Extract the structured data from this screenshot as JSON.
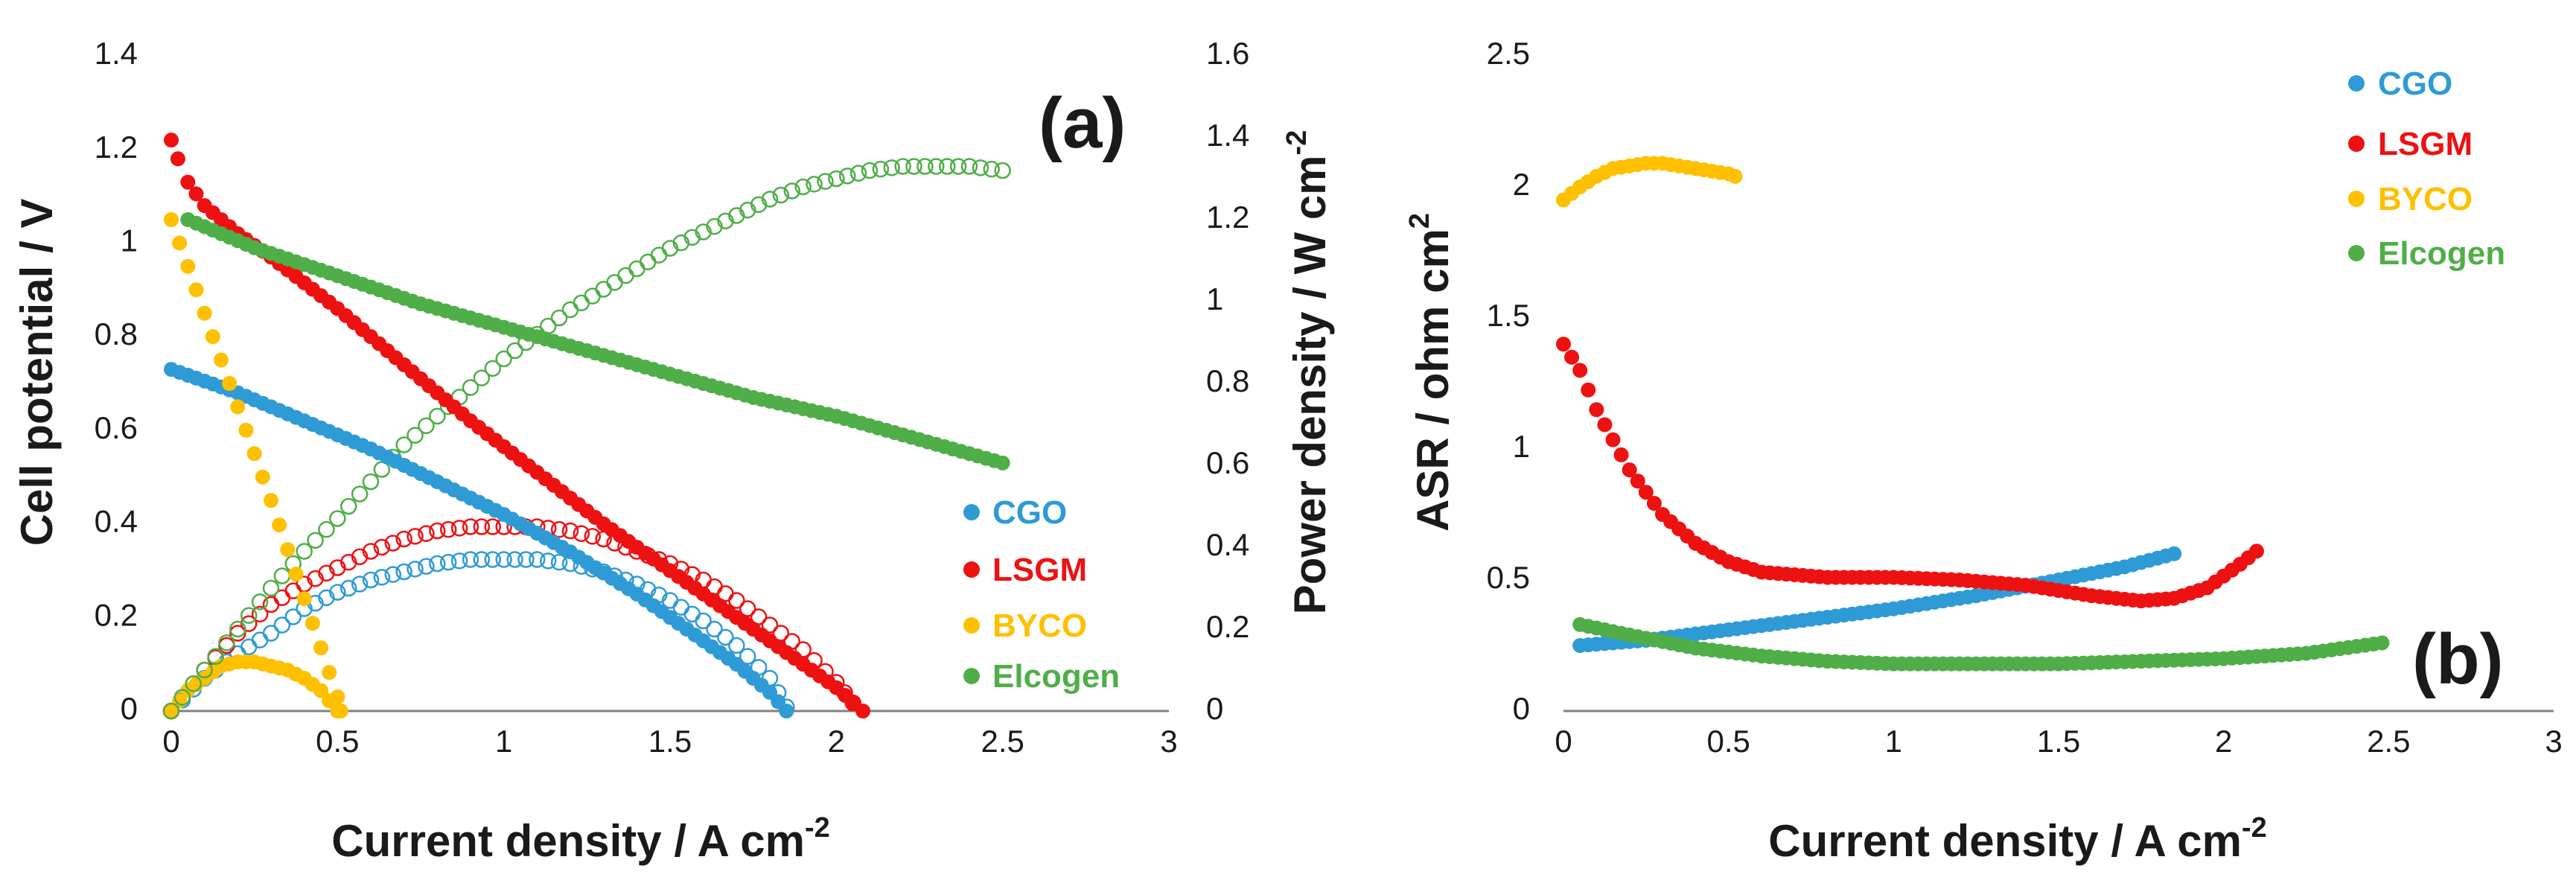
{
  "chart_data": [
    {
      "type": "scatter",
      "panel_label": "(a)",
      "xlabel": "Current density / A cm",
      "xlabel_sup": "-2",
      "ylabel": "Cell potential / V",
      "y2label": "Power density / W cm",
      "y2label_sup": "-2",
      "xlim": [
        0,
        3
      ],
      "ylim": [
        0,
        1.4
      ],
      "y2lim": [
        0,
        1.6
      ],
      "xticks": [
        "0",
        "0.5",
        "1",
        "1.5",
        "2",
        "2.5",
        "3"
      ],
      "yticks": [
        "0",
        "0.2",
        "0.4",
        "0.6",
        "0.8",
        "1",
        "1.2",
        "1.4"
      ],
      "y2ticks": [
        "0",
        "0.2",
        "0.4",
        "0.6",
        "0.8",
        "1",
        "1.2",
        "1.4",
        "1.6"
      ],
      "legend_position": "bottom-right",
      "legend": [
        {
          "name": "CGO",
          "color": "#2e9bd6"
        },
        {
          "name": "LSGM",
          "color": "#ee1111"
        },
        {
          "name": "BYCO",
          "color": "#ffc000"
        },
        {
          "name": "Elcogen",
          "color": "#4fae48"
        }
      ],
      "voltage_series": [
        {
          "name": "CGO",
          "color": "#2e9bd6",
          "style": "filled",
          "x": [
            0,
            0.2,
            0.4,
            0.6,
            0.8,
            1.0,
            1.2,
            1.4,
            1.6,
            1.7,
            1.8,
            1.85
          ],
          "y": [
            0.73,
            0.68,
            0.62,
            0.56,
            0.49,
            0.42,
            0.34,
            0.25,
            0.15,
            0.1,
            0.04,
            0.0
          ]
        },
        {
          "name": "LSGM",
          "color": "#ee1111",
          "style": "filled",
          "x": [
            0,
            0.02,
            0.05,
            0.1,
            0.2,
            0.3,
            0.5,
            0.7,
            0.9,
            1.1,
            1.3,
            1.5,
            1.7,
            1.9,
            2.0,
            2.08
          ],
          "y": [
            1.22,
            1.18,
            1.13,
            1.08,
            1.02,
            0.97,
            0.86,
            0.74,
            0.62,
            0.51,
            0.4,
            0.3,
            0.2,
            0.1,
            0.05,
            0.0
          ]
        },
        {
          "name": "BYCO",
          "color": "#ffc000",
          "style": "filled",
          "x": [
            0,
            0.05,
            0.1,
            0.2,
            0.3,
            0.4,
            0.5,
            0.51
          ],
          "y": [
            1.05,
            0.95,
            0.85,
            0.65,
            0.45,
            0.24,
            0.03,
            0.0
          ]
        },
        {
          "name": "Elcogen",
          "color": "#4fae48",
          "style": "filled",
          "x": [
            0.05,
            0.25,
            0.5,
            0.75,
            1.0,
            1.25,
            1.5,
            1.75,
            2.0,
            2.25,
            2.5
          ],
          "y": [
            1.05,
            0.99,
            0.93,
            0.87,
            0.82,
            0.77,
            0.72,
            0.67,
            0.63,
            0.58,
            0.53
          ]
        }
      ],
      "power_series": [
        {
          "name": "CGO",
          "color": "#2e9bd6",
          "style": "open",
          "x": [
            0,
            0.1,
            0.2,
            0.3,
            0.4,
            0.5,
            0.6,
            0.7,
            0.8,
            0.9,
            1.0,
            1.1,
            1.2,
            1.3,
            1.4,
            1.5,
            1.6,
            1.7,
            1.8,
            1.85
          ],
          "y": [
            0,
            0.08,
            0.14,
            0.19,
            0.25,
            0.29,
            0.32,
            0.34,
            0.36,
            0.37,
            0.37,
            0.37,
            0.36,
            0.34,
            0.31,
            0.27,
            0.22,
            0.16,
            0.08,
            0.01
          ]
        },
        {
          "name": "LSGM",
          "color": "#ee1111",
          "style": "open",
          "x": [
            0,
            0.1,
            0.2,
            0.3,
            0.4,
            0.5,
            0.6,
            0.7,
            0.8,
            0.9,
            1.0,
            1.1,
            1.2,
            1.3,
            1.4,
            1.5,
            1.6,
            1.7,
            1.8,
            1.9,
            2.0,
            2.05
          ],
          "y": [
            0,
            0.1,
            0.19,
            0.26,
            0.31,
            0.35,
            0.39,
            0.42,
            0.44,
            0.45,
            0.45,
            0.45,
            0.44,
            0.42,
            0.39,
            0.36,
            0.32,
            0.27,
            0.21,
            0.15,
            0.07,
            0.02
          ]
        },
        {
          "name": "BYCO",
          "color": "#ffc000",
          "style": "filled",
          "x": [
            0,
            0.05,
            0.1,
            0.15,
            0.2,
            0.25,
            0.3,
            0.35,
            0.4,
            0.45,
            0.5
          ],
          "y": [
            0,
            0.05,
            0.08,
            0.11,
            0.12,
            0.12,
            0.11,
            0.1,
            0.08,
            0.05,
            0.0
          ]
        },
        {
          "name": "Elcogen",
          "color": "#4fae48",
          "style": "open",
          "x": [
            0,
            0.1,
            0.2,
            0.3,
            0.4,
            0.5,
            0.6,
            0.7,
            0.8,
            0.9,
            1.0,
            1.1,
            1.2,
            1.3,
            1.4,
            1.5,
            1.6,
            1.7,
            1.8,
            1.9,
            2.0,
            2.1,
            2.2,
            2.3,
            2.4,
            2.5
          ],
          "y": [
            0,
            0.1,
            0.2,
            0.3,
            0.39,
            0.47,
            0.56,
            0.65,
            0.72,
            0.79,
            0.86,
            0.92,
            0.98,
            1.03,
            1.08,
            1.13,
            1.17,
            1.21,
            1.25,
            1.28,
            1.3,
            1.32,
            1.33,
            1.33,
            1.33,
            1.32
          ]
        }
      ]
    },
    {
      "type": "scatter",
      "panel_label": "(b)",
      "xlabel": "Current density / A cm",
      "xlabel_sup": "-2",
      "ylabel": "ASR / ohm cm",
      "ylabel_sup": "2",
      "xlim": [
        0,
        3
      ],
      "ylim": [
        0,
        2.5
      ],
      "xticks": [
        "0",
        "0.5",
        "1",
        "1.5",
        "2",
        "2.5",
        "3"
      ],
      "yticks": [
        "0",
        "0.5",
        "1",
        "1.5",
        "2",
        "2.5"
      ],
      "legend_position": "top-right",
      "legend": [
        {
          "name": "CGO",
          "color": "#2e9bd6"
        },
        {
          "name": "LSGM",
          "color": "#ee1111"
        },
        {
          "name": "BYCO",
          "color": "#ffc000"
        },
        {
          "name": "Elcogen",
          "color": "#4fae48"
        }
      ],
      "series": [
        {
          "name": "CGO",
          "color": "#2e9bd6",
          "style": "filled",
          "x": [
            0.05,
            0.25,
            0.5,
            0.75,
            1.0,
            1.25,
            1.5,
            1.7,
            1.85
          ],
          "y": [
            0.25,
            0.27,
            0.31,
            0.35,
            0.39,
            0.44,
            0.5,
            0.55,
            0.6
          ]
        },
        {
          "name": "LSGM",
          "color": "#ee1111",
          "style": "filled",
          "x": [
            0,
            0.05,
            0.1,
            0.2,
            0.3,
            0.4,
            0.5,
            0.6,
            0.8,
            1.0,
            1.2,
            1.4,
            1.6,
            1.75,
            1.85,
            1.95,
            2.05,
            2.1
          ],
          "y": [
            1.4,
            1.3,
            1.15,
            0.92,
            0.75,
            0.64,
            0.57,
            0.53,
            0.51,
            0.51,
            0.5,
            0.48,
            0.44,
            0.42,
            0.43,
            0.47,
            0.56,
            0.61
          ]
        },
        {
          "name": "BYCO",
          "color": "#ffc000",
          "style": "filled",
          "x": [
            0,
            0.05,
            0.1,
            0.15,
            0.2,
            0.25,
            0.3,
            0.35,
            0.4,
            0.45,
            0.5,
            0.52
          ],
          "y": [
            1.95,
            2.0,
            2.04,
            2.07,
            2.08,
            2.09,
            2.09,
            2.08,
            2.07,
            2.06,
            2.05,
            2.04
          ]
        },
        {
          "name": "Elcogen",
          "color": "#4fae48",
          "style": "filled",
          "x": [
            0.05,
            0.2,
            0.4,
            0.6,
            0.8,
            1.0,
            1.25,
            1.5,
            1.75,
            2.0,
            2.25,
            2.48
          ],
          "y": [
            0.33,
            0.29,
            0.24,
            0.21,
            0.19,
            0.18,
            0.18,
            0.18,
            0.19,
            0.2,
            0.22,
            0.26
          ]
        }
      ]
    }
  ]
}
